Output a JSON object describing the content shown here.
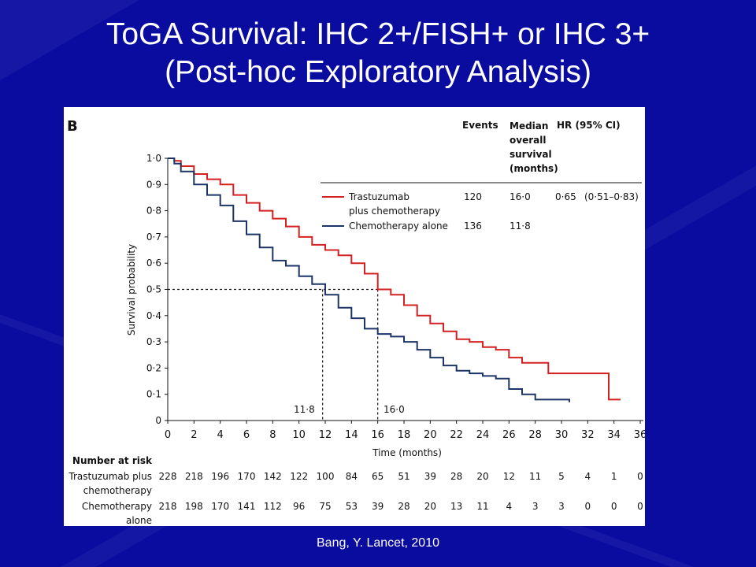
{
  "slide": {
    "title_line1": "ToGA Survival: IHC 2+/FISH+ or IHC 3+",
    "title_line2": "(Post-hoc Exploratory Analysis)",
    "citation": "Bang, Y.  Lancet, 2010"
  },
  "colors": {
    "background": "#0a0ca0",
    "trastuzumab": "#d42020",
    "chemo": "#1c3466",
    "text": "#ffffff"
  },
  "chart_data": {
    "type": "line",
    "panel_label": "B",
    "xlabel": "Time (months)",
    "ylabel": "Survival probability",
    "xlim": [
      0,
      36
    ],
    "ylim": [
      0,
      1.0
    ],
    "xticks": [
      "0",
      "2",
      "4",
      "6",
      "8",
      "10",
      "12",
      "14",
      "16",
      "18",
      "20",
      "22",
      "24",
      "26",
      "28",
      "30",
      "32",
      "34",
      "36"
    ],
    "yticks": [
      "0",
      "0·1",
      "0·2",
      "0·3",
      "0·4",
      "0·5",
      "0·6",
      "0·7",
      "0·8",
      "0·9",
      "1·0"
    ],
    "table_headers": {
      "events": "Events",
      "median": "Median overall survival (months)",
      "hr": "HR (95% CI)"
    },
    "series": [
      {
        "name": "Trastuzumab plus chemotherapy",
        "name_line1": "Trastuzumab",
        "name_line2": "plus chemotherapy",
        "events": "120",
        "median": "16·0",
        "hr": "0·65",
        "ci": "(0·51–0·83)",
        "color": "#d42020",
        "points": [
          [
            0,
            1.0
          ],
          [
            0.5,
            0.99
          ],
          [
            1,
            0.97
          ],
          [
            2,
            0.94
          ],
          [
            3,
            0.92
          ],
          [
            4,
            0.9
          ],
          [
            5,
            0.86
          ],
          [
            6,
            0.83
          ],
          [
            7,
            0.8
          ],
          [
            8,
            0.77
          ],
          [
            9,
            0.74
          ],
          [
            10,
            0.7
          ],
          [
            11,
            0.67
          ],
          [
            12,
            0.65
          ],
          [
            13,
            0.63
          ],
          [
            14,
            0.6
          ],
          [
            15,
            0.56
          ],
          [
            16,
            0.5
          ],
          [
            17,
            0.48
          ],
          [
            18,
            0.44
          ],
          [
            19,
            0.4
          ],
          [
            20,
            0.37
          ],
          [
            21,
            0.34
          ],
          [
            22,
            0.31
          ],
          [
            23,
            0.3
          ],
          [
            24,
            0.28
          ],
          [
            25,
            0.27
          ],
          [
            26,
            0.24
          ],
          [
            27,
            0.22
          ],
          [
            28,
            0.22
          ],
          [
            29,
            0.18
          ],
          [
            30,
            0.18
          ],
          [
            33.6,
            0.18
          ],
          [
            33.6,
            0.08
          ],
          [
            34.5,
            0.08
          ]
        ]
      },
      {
        "name": "Chemotherapy alone",
        "events": "136",
        "median": "11·8",
        "color": "#1c3466",
        "points": [
          [
            0,
            1.0
          ],
          [
            0.5,
            0.98
          ],
          [
            1,
            0.95
          ],
          [
            2,
            0.9
          ],
          [
            3,
            0.86
          ],
          [
            4,
            0.82
          ],
          [
            5,
            0.76
          ],
          [
            6,
            0.71
          ],
          [
            7,
            0.66
          ],
          [
            8,
            0.61
          ],
          [
            9,
            0.59
          ],
          [
            10,
            0.55
          ],
          [
            11,
            0.52
          ],
          [
            12,
            0.48
          ],
          [
            13,
            0.43
          ],
          [
            14,
            0.39
          ],
          [
            15,
            0.35
          ],
          [
            16,
            0.33
          ],
          [
            17,
            0.32
          ],
          [
            18,
            0.3
          ],
          [
            19,
            0.27
          ],
          [
            20,
            0.24
          ],
          [
            21,
            0.21
          ],
          [
            22,
            0.19
          ],
          [
            23,
            0.18
          ],
          [
            24,
            0.17
          ],
          [
            25,
            0.16
          ],
          [
            26,
            0.12
          ],
          [
            27,
            0.1
          ],
          [
            28,
            0.08
          ],
          [
            30,
            0.08
          ],
          [
            30.6,
            0.07
          ]
        ]
      }
    ],
    "median_labels": [
      "11·8",
      "16·0"
    ],
    "median_reference": {
      "survival": 0.5,
      "times": [
        11.8,
        16.0
      ]
    },
    "number_at_risk": {
      "header": "Number at risk",
      "rows": [
        {
          "label_line1": "Trastuzumab plus",
          "label_line2": "chemotherapy",
          "values": [
            "228",
            "218",
            "196",
            "170",
            "142",
            "122",
            "100",
            "84",
            "65",
            "51",
            "39",
            "28",
            "20",
            "12",
            "11",
            "5",
            "4",
            "1",
            "0"
          ]
        },
        {
          "label_line1": "Chemotherapy",
          "label_line2": "alone",
          "values": [
            "218",
            "198",
            "170",
            "141",
            "112",
            "96",
            "75",
            "53",
            "39",
            "28",
            "20",
            "13",
            "11",
            "4",
            "3",
            "3",
            "0",
            "0",
            "0"
          ]
        }
      ]
    }
  }
}
